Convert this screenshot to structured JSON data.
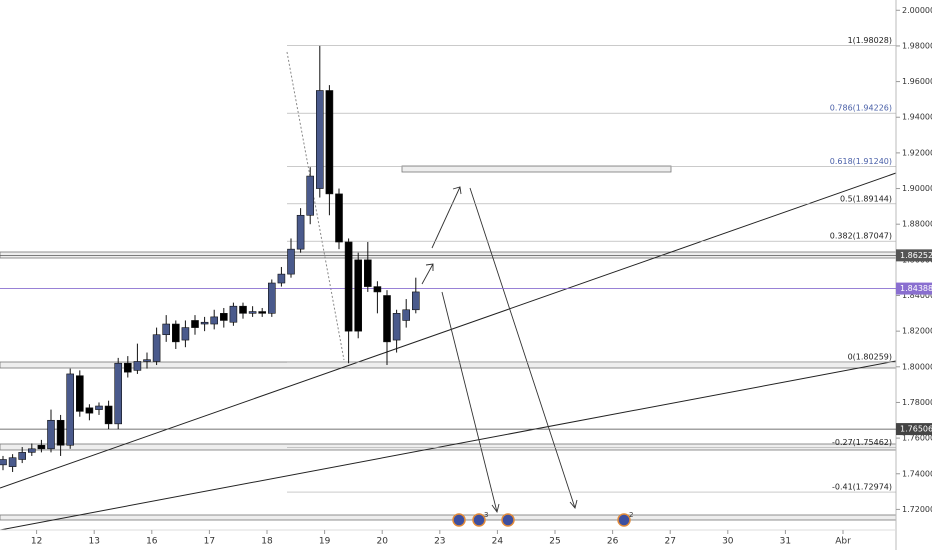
{
  "chart_data": {
    "type": "candlestick",
    "open": [
      1.745,
      1.744,
      1.748,
      1.752,
      1.756,
      1.754,
      1.77,
      1.756,
      1.795,
      1.777,
      1.776,
      1.778,
      1.768,
      1.802,
      1.798,
      1.803,
      1.803,
      1.818,
      1.824,
      1.815,
      1.826,
      1.824,
      1.824,
      1.83,
      1.825,
      1.834,
      1.83,
      1.831,
      1.83,
      1.847,
      1.852,
      1.866,
      1.885,
      1.9,
      1.955,
      1.897,
      1.87,
      1.86,
      1.86,
      1.845,
      1.84,
      1.815,
      1.826,
      1.832
    ],
    "high": [
      1.75,
      1.751,
      1.755,
      1.757,
      1.759,
      1.776,
      1.773,
      1.799,
      1.798,
      1.779,
      1.78,
      1.781,
      1.805,
      1.806,
      1.813,
      1.808,
      1.822,
      1.829,
      1.826,
      1.826,
      1.829,
      1.828,
      1.832,
      1.833,
      1.836,
      1.836,
      1.834,
      1.833,
      1.849,
      1.856,
      1.872,
      1.889,
      1.912,
      1.98,
      1.958,
      1.9,
      1.872,
      1.864,
      1.87,
      1.848,
      1.843,
      1.832,
      1.838,
      1.85
    ],
    "low": [
      1.742,
      1.741,
      1.746,
      1.75,
      1.752,
      1.752,
      1.75,
      1.754,
      1.772,
      1.77,
      1.773,
      1.765,
      1.765,
      1.794,
      1.796,
      1.799,
      1.801,
      1.814,
      1.81,
      1.811,
      1.818,
      1.82,
      1.821,
      1.822,
      1.823,
      1.827,
      1.828,
      1.828,
      1.828,
      1.845,
      1.85,
      1.864,
      1.88,
      1.895,
      1.885,
      1.866,
      1.802,
      1.816,
      1.842,
      1.83,
      1.801,
      1.808,
      1.822,
      1.83
    ],
    "close": [
      1.748,
      1.749,
      1.752,
      1.754,
      1.754,
      1.77,
      1.756,
      1.796,
      1.775,
      1.774,
      1.778,
      1.768,
      1.802,
      1.797,
      1.803,
      1.804,
      1.818,
      1.824,
      1.814,
      1.822,
      1.822,
      1.825,
      1.828,
      1.826,
      1.834,
      1.83,
      1.831,
      1.83,
      1.847,
      1.852,
      1.866,
      1.885,
      1.907,
      1.955,
      1.897,
      1.87,
      1.82,
      1.82,
      1.845,
      1.842,
      1.814,
      1.83,
      1.832,
      1.842
    ],
    "up_color": "#4a5a8c",
    "down_color": "#000000",
    "xlim": [
      -0.3125,
      93.02
    ],
    "xticks": [
      {
        "value": 3.5,
        "label": "12"
      },
      {
        "value": 9.5,
        "label": "13"
      },
      {
        "value": 15.5,
        "label": "16"
      },
      {
        "value": 21.5,
        "label": "17"
      },
      {
        "value": 27.5,
        "label": "18"
      },
      {
        "value": 33.5,
        "label": "19"
      },
      {
        "value": 39.5,
        "label": "20"
      },
      {
        "value": 45.5,
        "label": "23"
      },
      {
        "value": 51.5,
        "label": "24"
      },
      {
        "value": 57.5,
        "label": "25"
      },
      {
        "value": 63.5,
        "label": "26"
      },
      {
        "value": 69.5,
        "label": "27"
      },
      {
        "value": 75.5,
        "label": "30"
      },
      {
        "value": 81.5,
        "label": "31"
      },
      {
        "value": 87.5,
        "label": "Abr"
      }
    ],
    "ylim": [
      1.70845,
      2.00577
    ],
    "yticks": [
      {
        "value": 2.0,
        "label": "2.00000"
      },
      {
        "value": 1.98,
        "label": "1.98000"
      },
      {
        "value": 1.96,
        "label": "1.96000"
      },
      {
        "value": 1.94,
        "label": "1.94000"
      },
      {
        "value": 1.92,
        "label": "1.92000"
      },
      {
        "value": 1.9,
        "label": "1.90000"
      },
      {
        "value": 1.88,
        "label": "1.88000"
      },
      {
        "value": 1.86,
        "label": "1.86000"
      },
      {
        "value": 1.84,
        "label": "1.84000"
      },
      {
        "value": 1.82,
        "label": "1.82000"
      },
      {
        "value": 1.8,
        "label": "1.80000"
      },
      {
        "value": 1.78,
        "label": "1.78000"
      },
      {
        "value": 1.76,
        "label": "1.76000"
      },
      {
        "value": 1.74,
        "label": "1.74000"
      },
      {
        "value": 1.72,
        "label": "1.72000"
      }
    ],
    "fib_levels": [
      {
        "value": 1.98028,
        "label": "1(1.98028)",
        "color": "#222222"
      },
      {
        "value": 1.94226,
        "label": "0.786(1.94226)",
        "color": "#4a60a8"
      },
      {
        "value": 1.9124,
        "label": "0.618(1.91240)",
        "color": "#4a60a8"
      },
      {
        "value": 1.89144,
        "label": "0.5(1.89144)",
        "color": "#222222"
      },
      {
        "value": 1.87047,
        "label": "0.382(1.87047)",
        "color": "#222222"
      },
      {
        "value": 1.80259,
        "label": "0(1.80259)",
        "color": "#222222"
      },
      {
        "value": 1.75462,
        "label": "-0.27(1.75462)",
        "color": "#222222"
      },
      {
        "value": 1.72974,
        "label": "-0.41(1.72974)",
        "color": "#222222"
      }
    ],
    "price_markers": [
      {
        "value": 1.86252,
        "color": "#555555"
      },
      {
        "value": 1.84388,
        "color": "#8a6fd0"
      },
      {
        "value": 1.76506,
        "color": "#444444"
      }
    ],
    "event_badges": [
      "3",
      "2"
    ]
  }
}
